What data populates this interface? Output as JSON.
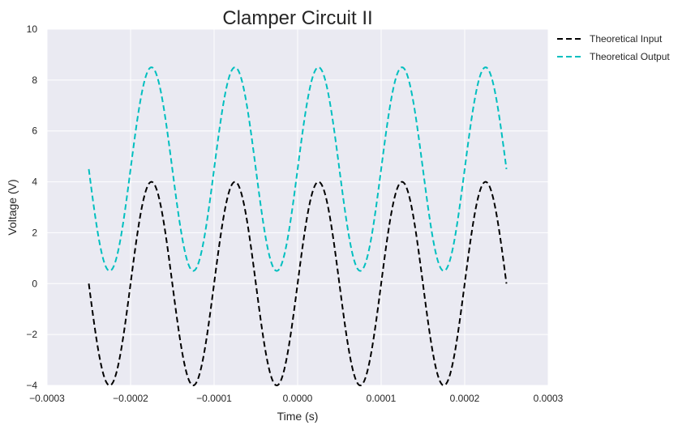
{
  "chart_data": {
    "type": "line",
    "title": "Clamper Circuit II",
    "xlabel": "Time (s)",
    "ylabel": "Voltage (V)",
    "xlim": [
      -0.0003,
      0.0003
    ],
    "ylim": [
      -4,
      10
    ],
    "xticks": [
      -0.0003,
      -0.0002,
      -0.0001,
      0.0,
      0.0001,
      0.0002,
      0.0003
    ],
    "xtick_labels": [
      "−0.0003",
      "−0.0002",
      "−0.0001",
      "0.0000",
      "0.0001",
      "0.0002",
      "0.0003"
    ],
    "yticks": [
      -4,
      -2,
      0,
      2,
      4,
      6,
      8,
      10
    ],
    "ytick_labels": [
      "−4",
      "−2",
      "0",
      "2",
      "4",
      "6",
      "8",
      "10"
    ],
    "grid": true,
    "legend_position": "outside-right",
    "background_color": "#eaeaf2",
    "series": [
      {
        "name": "Theoretical Input",
        "color": "#000000",
        "style": "dashed",
        "function": "4*sin(2*pi*10000*t)",
        "x_range": [
          -0.00025,
          0.00025
        ],
        "amplitude": 4,
        "offset": 0,
        "frequency_hz": 10000
      },
      {
        "name": "Theoretical Output",
        "color": "#00bfbf",
        "style": "dashed",
        "function": "4*sin(2*pi*10000*t) + 4.5",
        "x_range": [
          -0.00025,
          0.00025
        ],
        "amplitude": 4,
        "offset": 4.5,
        "frequency_hz": 10000
      }
    ]
  }
}
